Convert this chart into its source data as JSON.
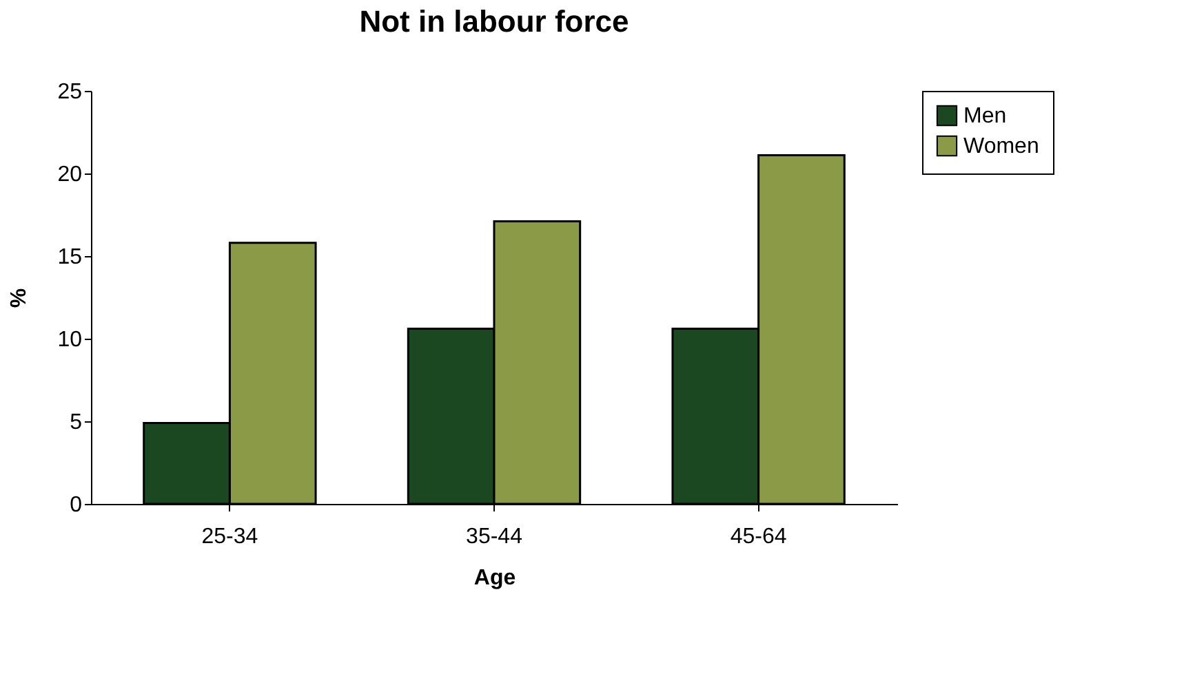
{
  "chart_data": {
    "type": "bar",
    "title": "Not in labour force",
    "xlabel": "Age",
    "ylabel": "%",
    "categories": [
      "25-34",
      "35-44",
      "45-64"
    ],
    "series": [
      {
        "name": "Men",
        "color": "#1c4821",
        "values": [
          4.9,
          10.6,
          10.6
        ]
      },
      {
        "name": "Women",
        "color": "#8a9a47",
        "values": [
          15.8,
          17.1,
          21.1
        ]
      }
    ],
    "ylim": [
      0,
      25
    ],
    "yticks": [
      0,
      5,
      10,
      15,
      20,
      25
    ],
    "grid": false,
    "legend": "right"
  }
}
